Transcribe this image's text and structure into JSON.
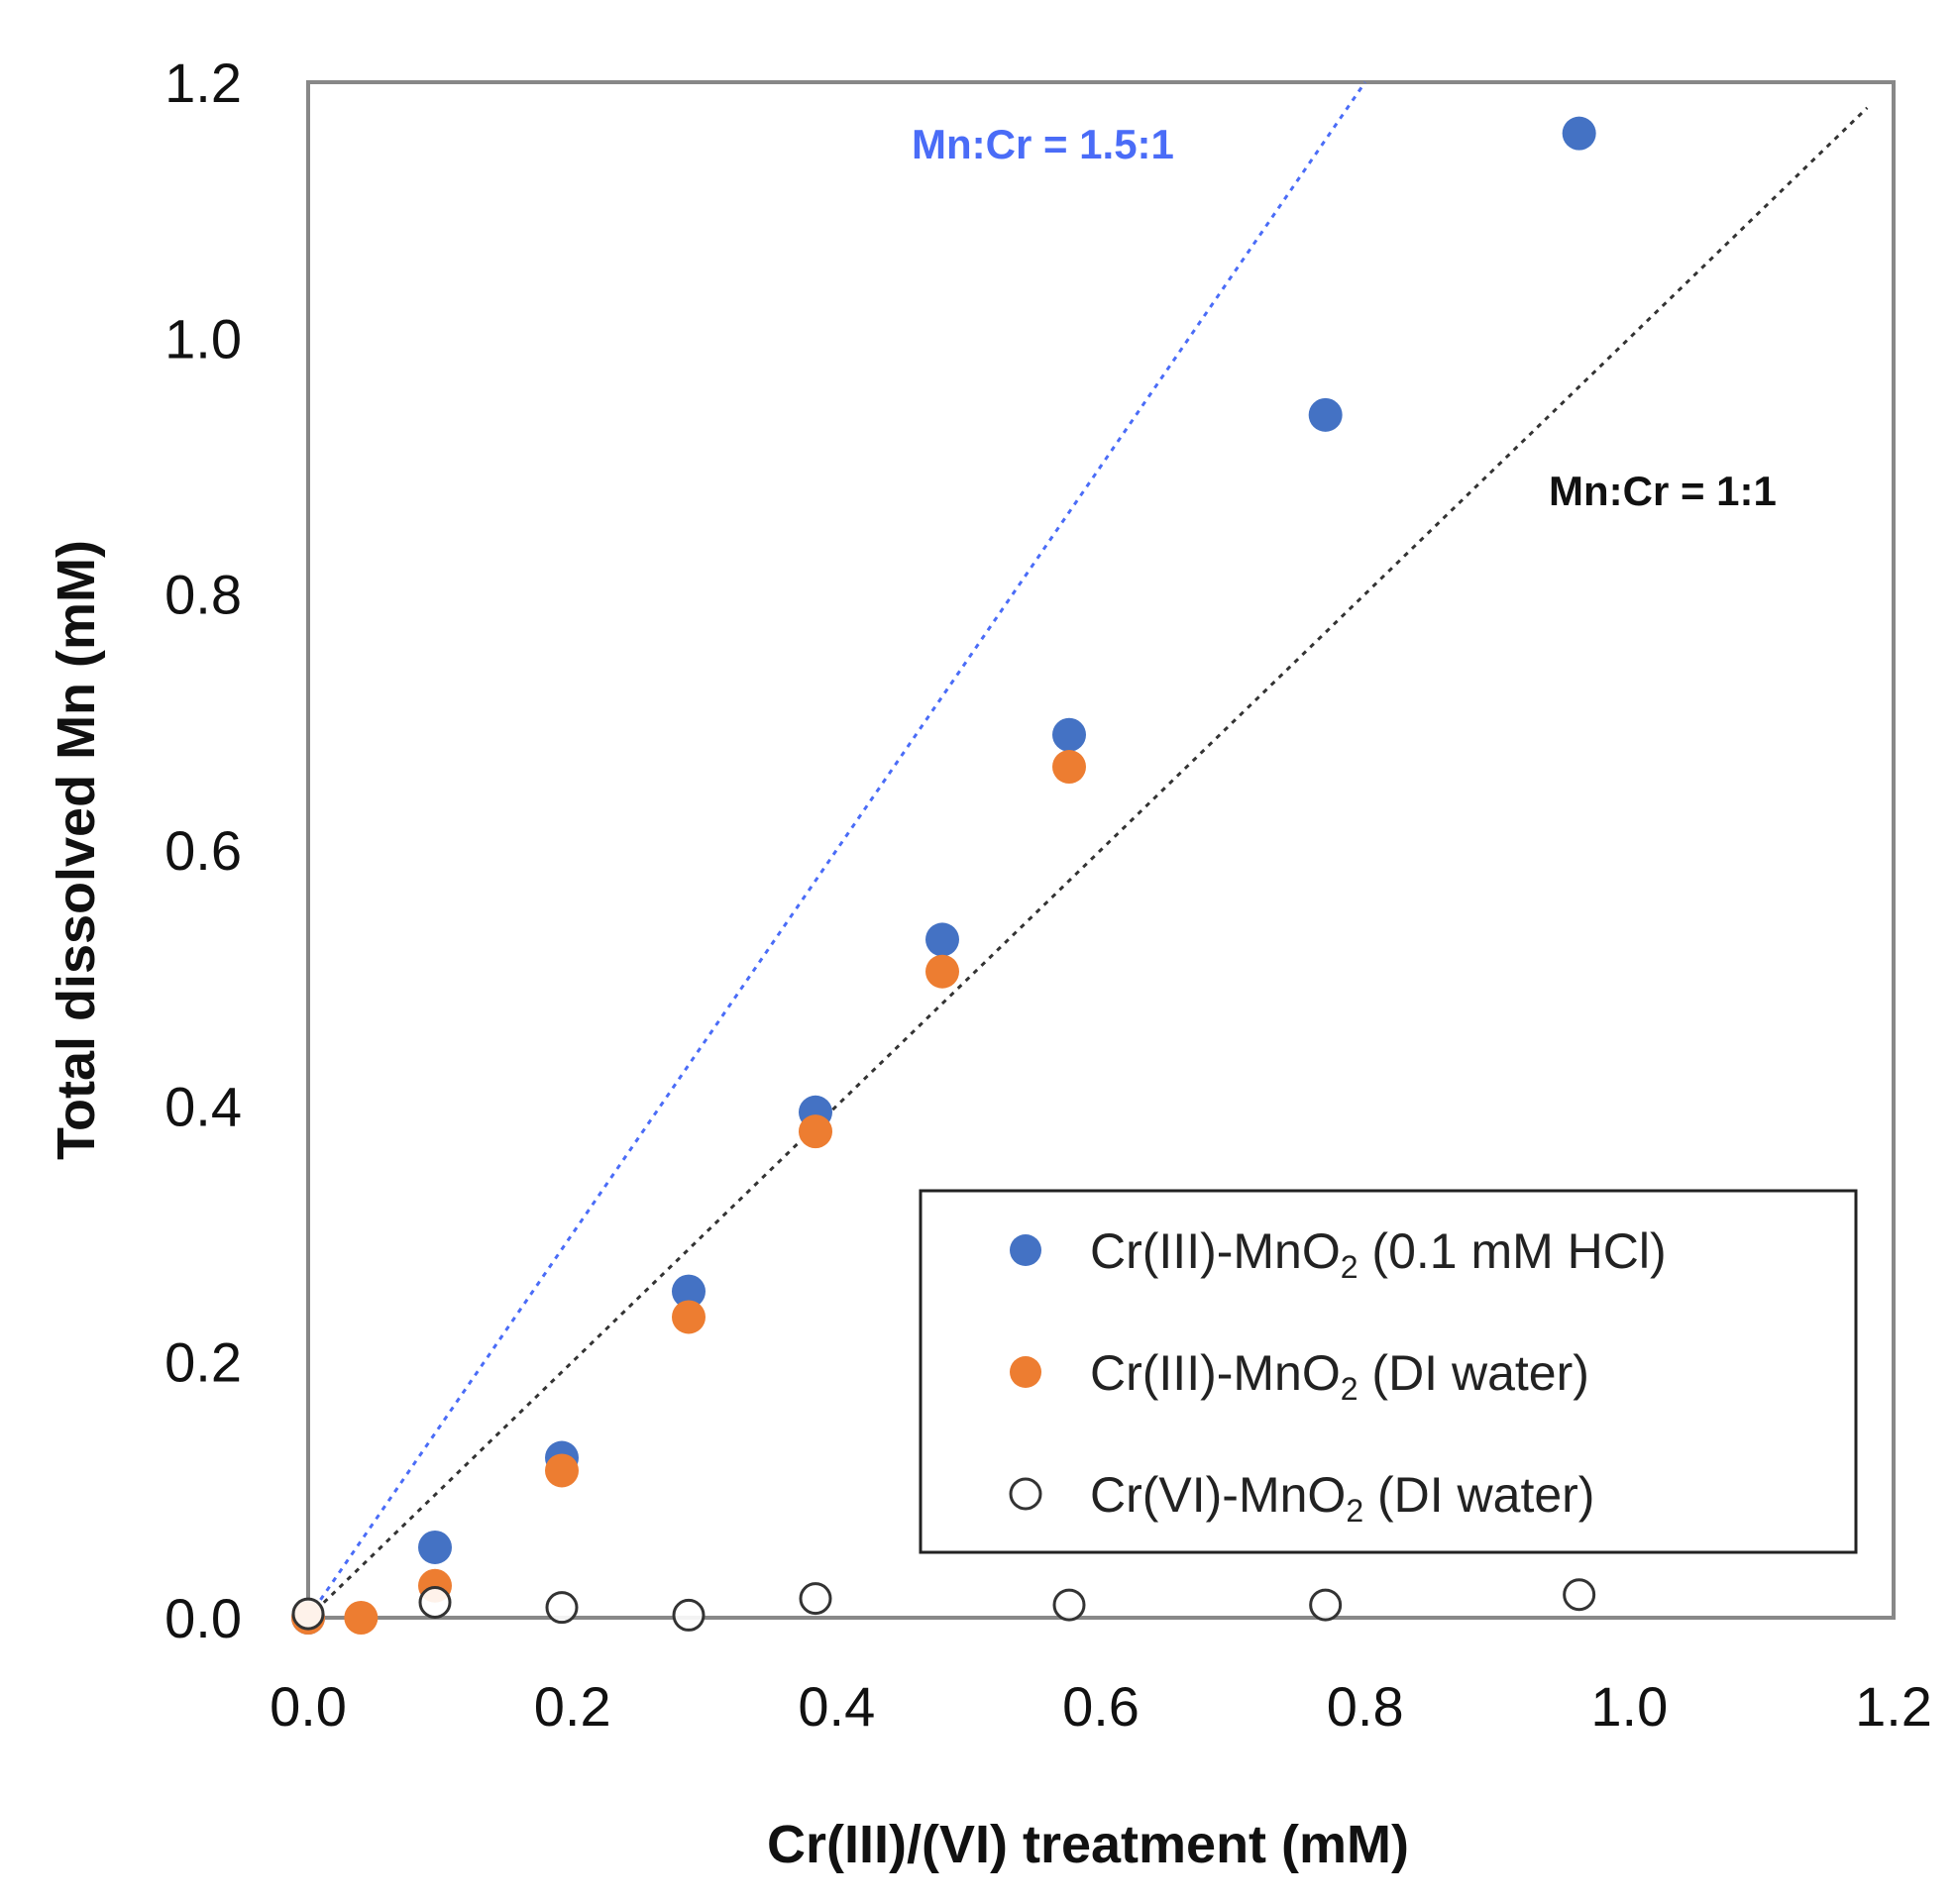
{
  "chart_data": {
    "type": "scatter",
    "xlabel": "Cr(III)/(VI) treatment (mM)",
    "ylabel": "Total dissolved Mn (mM)",
    "xlim": [
      0,
      1.2
    ],
    "ylim": [
      0,
      1.2
    ],
    "x_ticks": [
      "0.0",
      "0.2",
      "0.4",
      "0.6",
      "0.8",
      "1.0",
      "1.2"
    ],
    "y_ticks": [
      "0.0",
      "0.2",
      "0.4",
      "0.6",
      "0.8",
      "1.0",
      "1.2"
    ],
    "grid": false,
    "legend_position": "bottom-right",
    "series": [
      {
        "name": "Cr(III)-MnO2 (0.1 mM HCl)",
        "label_main": "Cr(III)-MnO",
        "label_sub": "2",
        "label_tail": " (0.1 mM HCl)",
        "marker": "filled-circle",
        "color": "#4472C4",
        "x": [
          0.0,
          0.096,
          0.192,
          0.288,
          0.384,
          0.48,
          0.576,
          0.77,
          0.962
        ],
        "y": [
          0.0,
          0.055,
          0.125,
          0.255,
          0.395,
          0.53,
          0.69,
          0.94,
          1.16
        ]
      },
      {
        "name": "Cr(III)-MnO2 (DI water)",
        "label_main": "Cr(III)-MnO",
        "label_sub": "2",
        "label_tail": " (DI water)",
        "marker": "filled-circle",
        "color": "#ED7D31",
        "x": [
          0.0,
          0.04,
          0.096,
          0.192,
          0.288,
          0.384,
          0.48,
          0.576
        ],
        "y": [
          0.0,
          0.0,
          0.025,
          0.115,
          0.235,
          0.38,
          0.505,
          0.665
        ]
      },
      {
        "name": "Cr(VI)-MnO2 (DI water)",
        "label_main": "Cr(VI)-MnO",
        "label_sub": "2",
        "label_tail": " (DI water)",
        "marker": "open-circle",
        "color": "#333333",
        "x": [
          0.0,
          0.096,
          0.192,
          0.288,
          0.384,
          0.576,
          0.77,
          0.962
        ],
        "y": [
          0.003,
          0.012,
          0.008,
          0.002,
          0.015,
          0.01,
          0.01,
          0.018
        ]
      }
    ],
    "reference_lines": [
      {
        "label": "Mn:Cr = 1.5:1",
        "slope": 1.5,
        "color": "#4A6CF7"
      },
      {
        "label": "Mn:Cr = 1:1",
        "slope": 1.0,
        "color": "#333333"
      }
    ]
  }
}
